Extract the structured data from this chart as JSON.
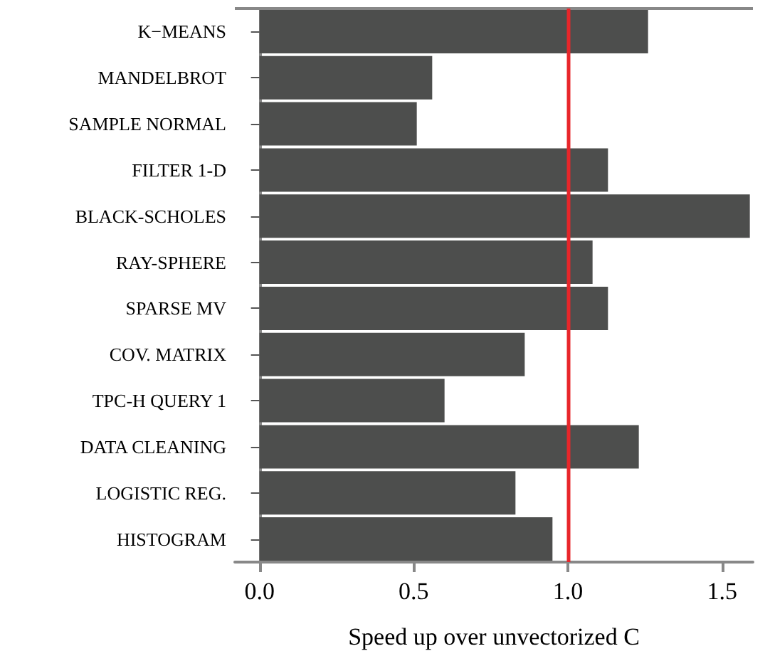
{
  "chart_data": {
    "type": "bar",
    "orientation": "horizontal",
    "xlabel": "Speed up over unvectorized C",
    "categories": [
      "K−MEANS",
      "MANDELBROT",
      "SAMPLE NORMAL",
      "FILTER 1-D",
      "BLACK-SCHOLES",
      "RAY-SPHERE",
      "SPARSE MV",
      "COV. MATRIX",
      "TPC-H QUERY 1",
      "DATA CLEANING",
      "LOGISTIC REG.",
      "HISTOGRAM"
    ],
    "values": [
      1.26,
      0.56,
      0.51,
      1.13,
      1.59,
      1.08,
      1.13,
      0.86,
      0.6,
      1.23,
      0.83,
      0.95
    ],
    "color": "#4d4e4d",
    "xlim": [
      -0.08,
      1.6
    ],
    "xticks": [
      {
        "value": 0,
        "label": "0.0"
      },
      {
        "value": 0.5,
        "label": "0.5"
      },
      {
        "value": 1,
        "label": "1.0"
      },
      {
        "value": 1.5,
        "label": "1.5"
      }
    ],
    "ref_lines": [
      {
        "axis": "x",
        "value": 1,
        "color": "#e8262a"
      }
    ],
    "grid": false
  }
}
